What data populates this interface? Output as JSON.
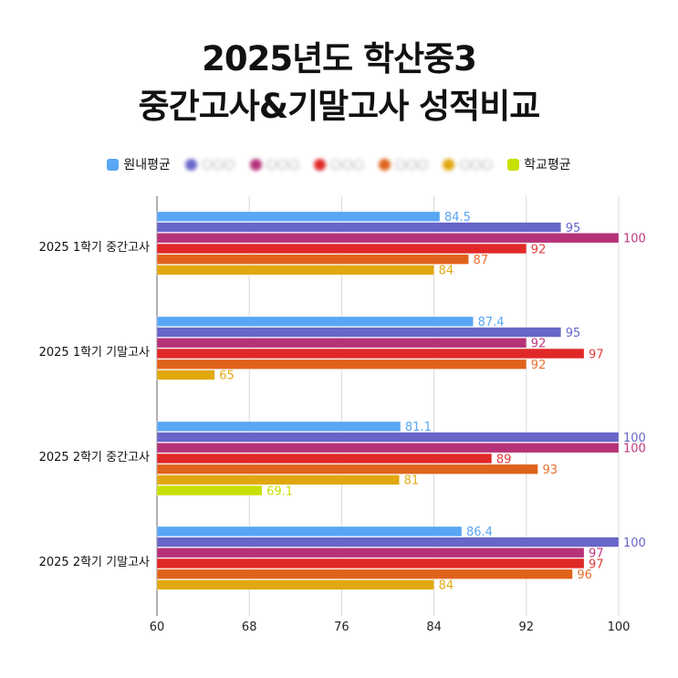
{
  "title_line1": "2025년도 학산중3",
  "title_line2": "중간고사&기말고사 성적비교",
  "chart_data": {
    "type": "bar",
    "orientation": "horizontal",
    "title": "2025년도 학산중3 중간고사&기말고사 성적비교",
    "categories": [
      "2025 1학기 중간고사",
      "2025 1학기 기말고사",
      "2025 2학기 중간고사",
      "2025 2학기 기말고사"
    ],
    "xlim": [
      60,
      100
    ],
    "xticks": [
      60,
      68,
      76,
      84,
      92,
      100
    ],
    "grid": true,
    "legend_position": "top",
    "series": [
      {
        "name": "원내평균",
        "color": "#58a6f5",
        "label_color": "#58a6f5",
        "blurred": false,
        "values": [
          84.5,
          87.4,
          81.1,
          86.4
        ]
      },
      {
        "name": "○○○",
        "color": "#6766c9",
        "label_color": "#6766c9",
        "blurred": true,
        "values": [
          95,
          95,
          100,
          100
        ]
      },
      {
        "name": "○○○",
        "color": "#b63278",
        "label_color": "#c0387f",
        "blurred": true,
        "values": [
          100,
          92,
          100,
          97
        ]
      },
      {
        "name": "○○○",
        "color": "#e02828",
        "label_color": "#e23a3a",
        "blurred": true,
        "values": [
          92,
          97,
          89,
          97
        ]
      },
      {
        "name": "○○○",
        "color": "#e0631c",
        "label_color": "#e8702c",
        "blurred": true,
        "values": [
          87,
          92,
          93,
          96
        ]
      },
      {
        "name": "○○○",
        "color": "#e0a70e",
        "label_color": "#e3aa15",
        "blurred": true,
        "values": [
          84,
          65,
          81,
          84
        ]
      },
      {
        "name": "학교평균",
        "color": "#c8e000",
        "label_color": "#c8e000",
        "blurred": false,
        "values": [
          null,
          null,
          69.1,
          null
        ]
      }
    ]
  }
}
